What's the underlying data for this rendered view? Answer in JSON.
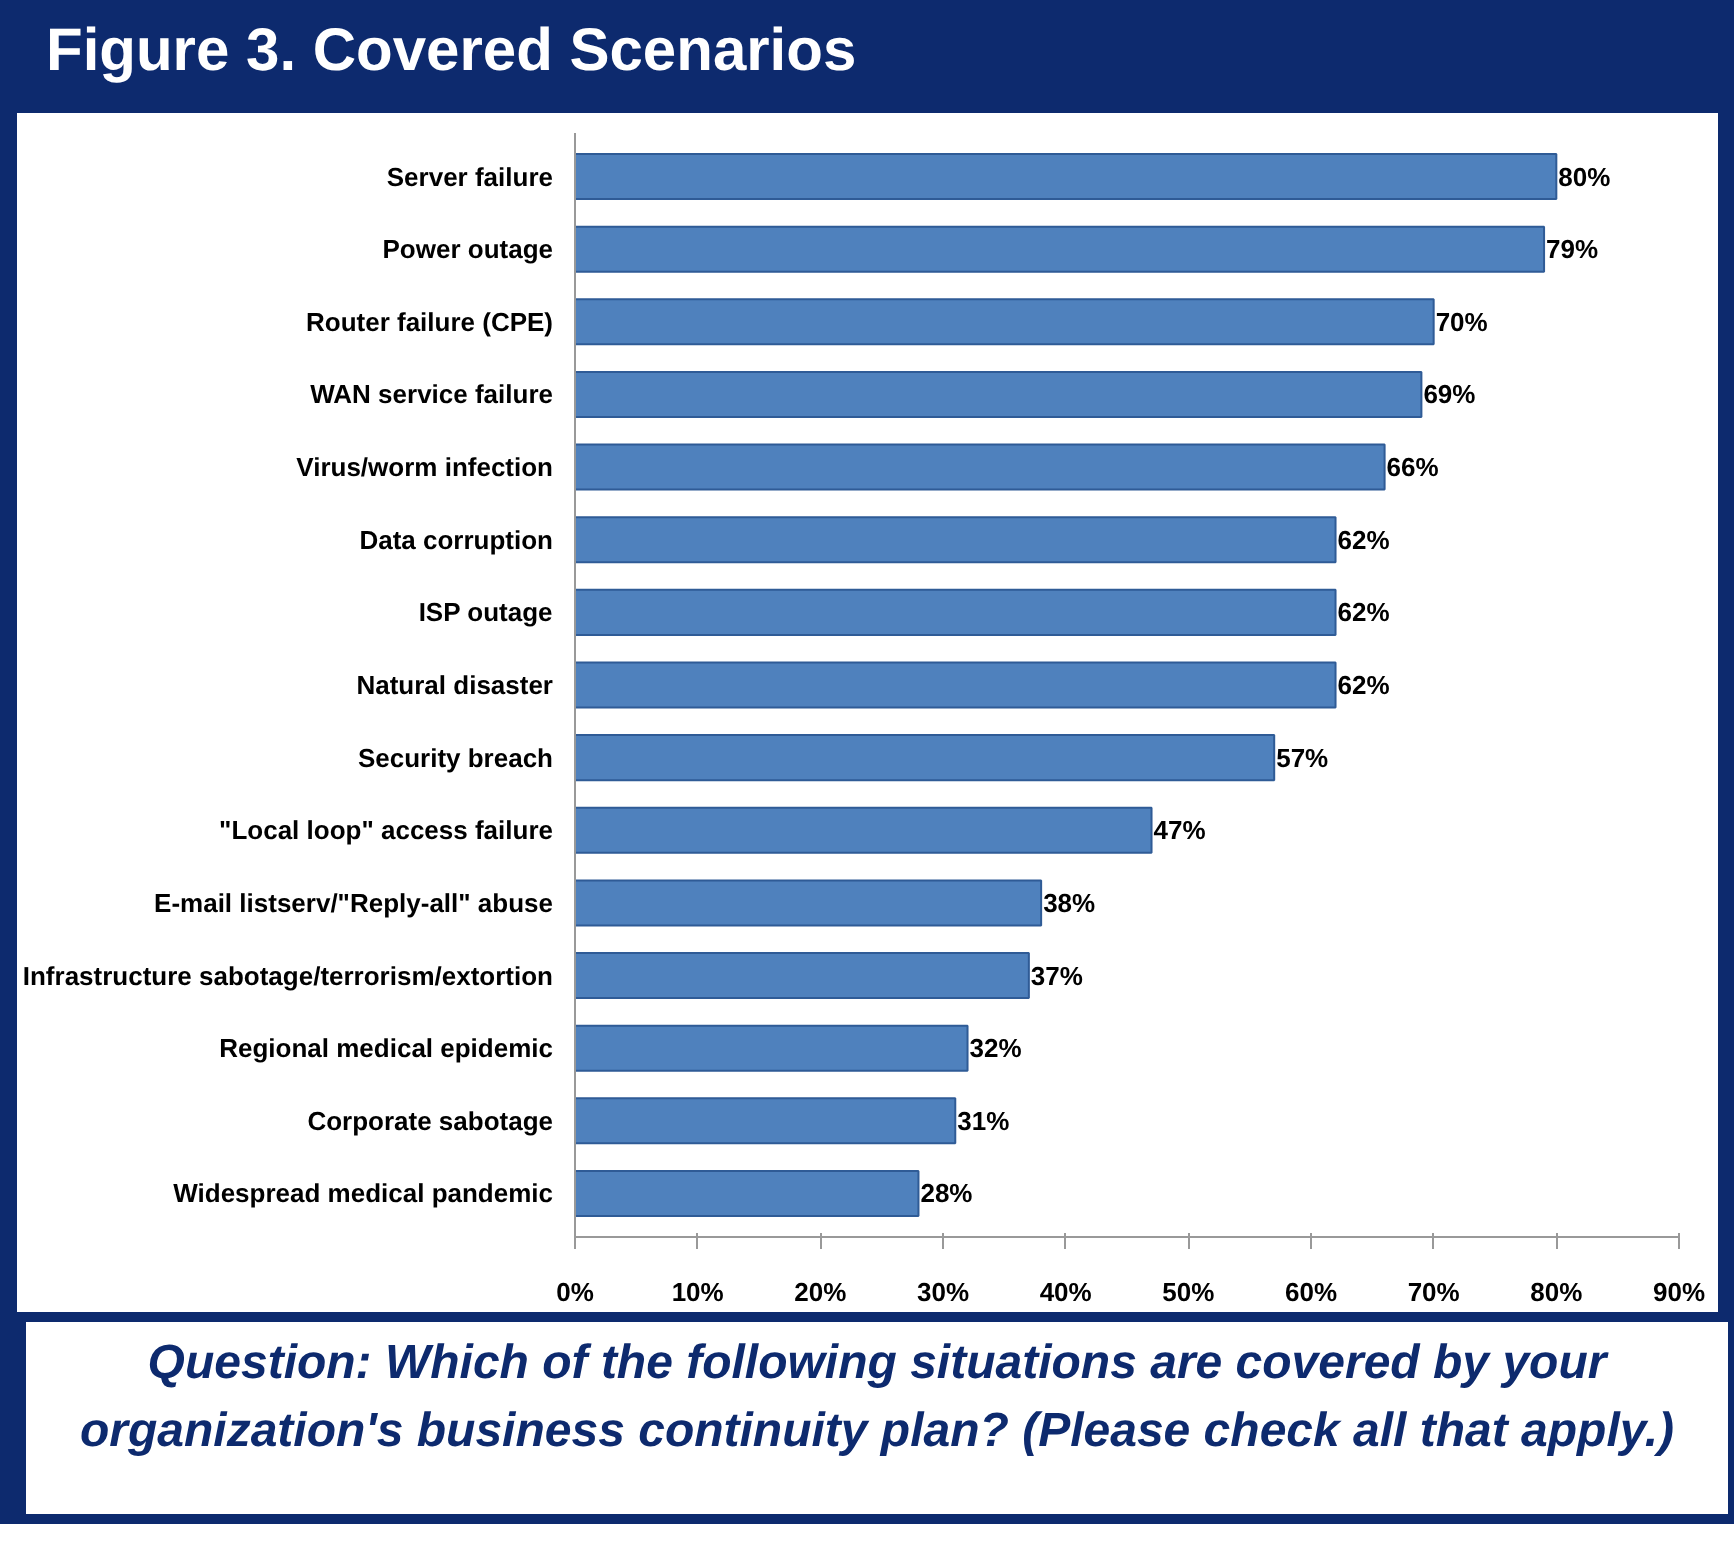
{
  "chart_data": {
    "type": "bar",
    "orientation": "horizontal",
    "title": "Figure 3. Covered Scenarios",
    "categories": [
      "Server failure",
      "Power outage",
      "Router failure (CPE)",
      "WAN service failure",
      "Virus/worm infection",
      "Data corruption",
      "ISP outage",
      "Natural disaster",
      "Security breach",
      "\"Local loop\" access failure",
      "E-mail listserv/\"Reply-all\" abuse",
      "Infrastructure sabotage/terrorism/extortion",
      "Regional medical epidemic",
      "Corporate sabotage",
      "Widespread medical pandemic"
    ],
    "values": [
      80,
      79,
      70,
      69,
      66,
      62,
      62,
      62,
      57,
      47,
      38,
      37,
      32,
      31,
      28
    ],
    "value_labels": [
      "80%",
      "79%",
      "70%",
      "69%",
      "66%",
      "62%",
      "62%",
      "62%",
      "57%",
      "47%",
      "38%",
      "37%",
      "32%",
      "31%",
      "28%"
    ],
    "color": "#4f81bd",
    "xlim": [
      0,
      90
    ],
    "xticks": [
      {
        "value": 0,
        "label": "0%"
      },
      {
        "value": 10,
        "label": "10%"
      },
      {
        "value": 20,
        "label": "20%"
      },
      {
        "value": 30,
        "label": "30%"
      },
      {
        "value": 40,
        "label": "40%"
      },
      {
        "value": 50,
        "label": "50%"
      },
      {
        "value": 60,
        "label": "60%"
      },
      {
        "value": 70,
        "label": "70%"
      },
      {
        "value": 80,
        "label": "80%"
      },
      {
        "value": 90,
        "label": "90%"
      }
    ],
    "grid": false,
    "annotations": [
      "Question: Which of the following situations are covered by your organization's business continuity plan? (Please check all that apply.)"
    ]
  }
}
